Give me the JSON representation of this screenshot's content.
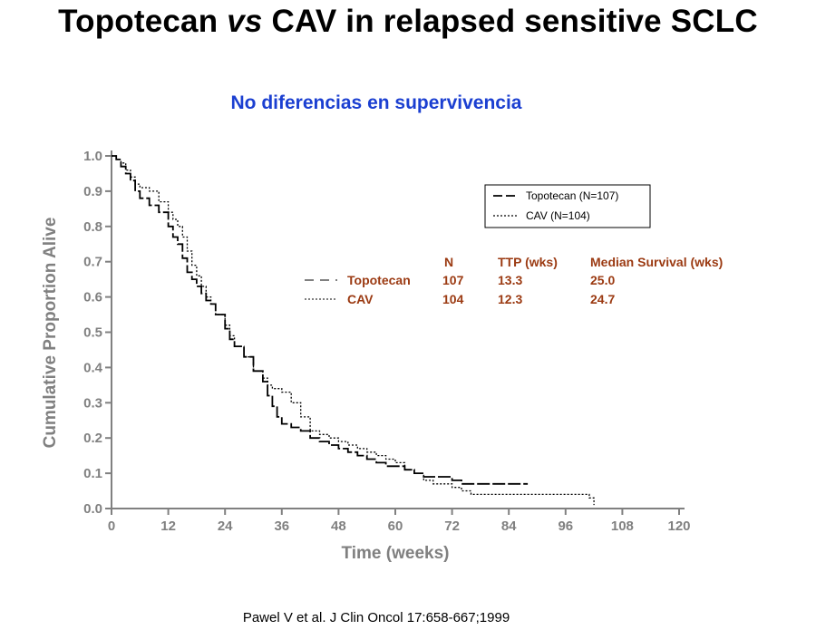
{
  "title": {
    "prefix": "Topotecan ",
    "italic": "vs",
    "suffix": " CAV in relapsed sensitive SCLC"
  },
  "subtitle": "No diferencias en supervivencia",
  "citation": "Pawel V et al. J Clin Oncol 17:658-667;1999",
  "stats_table": {
    "headers": [
      "N",
      "TTP (wks)",
      "Median Survival (wks)"
    ],
    "rows": [
      {
        "label": "Topotecan",
        "n": "107",
        "ttp": "13.3",
        "median": "25.0"
      },
      {
        "label": "CAV",
        "n": "104",
        "ttp": "12.3",
        "median": "24.7"
      }
    ]
  },
  "chart_data": {
    "type": "line",
    "xlabel": "Time (weeks)",
    "ylabel": "Cumulative Proportion Alive",
    "xlim": [
      0,
      120
    ],
    "ylim": [
      0,
      1.0
    ],
    "xticks": [
      0,
      12,
      24,
      36,
      48,
      60,
      72,
      84,
      96,
      108,
      120
    ],
    "yticks": [
      0.0,
      0.1,
      0.2,
      0.3,
      0.4,
      0.5,
      0.6,
      0.7,
      0.8,
      0.9,
      1.0
    ],
    "grid": false,
    "legend_position": "top-right",
    "series": [
      {
        "name": "Topotecan (N=107)",
        "style": "dashed",
        "x": [
          0,
          1,
          2,
          3,
          4,
          5,
          6,
          8,
          10,
          12,
          13,
          14,
          15,
          16,
          17,
          18,
          19,
          20,
          21,
          22,
          24,
          25,
          26,
          28,
          30,
          32,
          33,
          34,
          35,
          36,
          38,
          40,
          42,
          44,
          46,
          48,
          50,
          52,
          54,
          56,
          58,
          60,
          62,
          64,
          66,
          68,
          70,
          72,
          74,
          76,
          78,
          80,
          82,
          84,
          86,
          88
        ],
        "y": [
          1.0,
          0.99,
          0.97,
          0.95,
          0.93,
          0.9,
          0.88,
          0.86,
          0.84,
          0.8,
          0.77,
          0.75,
          0.71,
          0.67,
          0.65,
          0.63,
          0.61,
          0.59,
          0.58,
          0.55,
          0.51,
          0.48,
          0.46,
          0.43,
          0.39,
          0.36,
          0.32,
          0.29,
          0.26,
          0.24,
          0.23,
          0.22,
          0.2,
          0.19,
          0.18,
          0.17,
          0.16,
          0.15,
          0.14,
          0.13,
          0.12,
          0.12,
          0.11,
          0.1,
          0.09,
          0.09,
          0.09,
          0.08,
          0.07,
          0.07,
          0.07,
          0.07,
          0.07,
          0.07,
          0.07,
          0.07
        ]
      },
      {
        "name": "CAV (N=104)",
        "style": "dotted",
        "x": [
          0,
          1,
          2,
          3,
          4,
          5,
          6,
          8,
          10,
          12,
          13,
          14,
          15,
          16,
          17,
          18,
          19,
          20,
          21,
          22,
          24,
          25,
          26,
          28,
          30,
          32,
          33,
          34,
          35,
          36,
          38,
          40,
          42,
          44,
          46,
          48,
          50,
          52,
          54,
          56,
          58,
          60,
          62,
          64,
          66,
          68,
          70,
          72,
          74,
          76,
          78,
          80,
          84,
          88,
          92,
          96,
          100,
          101,
          102
        ],
        "y": [
          1.0,
          0.99,
          0.98,
          0.96,
          0.94,
          0.92,
          0.91,
          0.9,
          0.87,
          0.84,
          0.82,
          0.8,
          0.77,
          0.73,
          0.69,
          0.66,
          0.63,
          0.6,
          0.58,
          0.55,
          0.52,
          0.49,
          0.46,
          0.43,
          0.39,
          0.37,
          0.35,
          0.34,
          0.34,
          0.33,
          0.3,
          0.26,
          0.22,
          0.21,
          0.2,
          0.19,
          0.18,
          0.17,
          0.16,
          0.15,
          0.14,
          0.13,
          0.11,
          0.1,
          0.08,
          0.07,
          0.07,
          0.06,
          0.05,
          0.04,
          0.04,
          0.04,
          0.04,
          0.04,
          0.04,
          0.04,
          0.04,
          0.03,
          0.01
        ]
      }
    ]
  }
}
